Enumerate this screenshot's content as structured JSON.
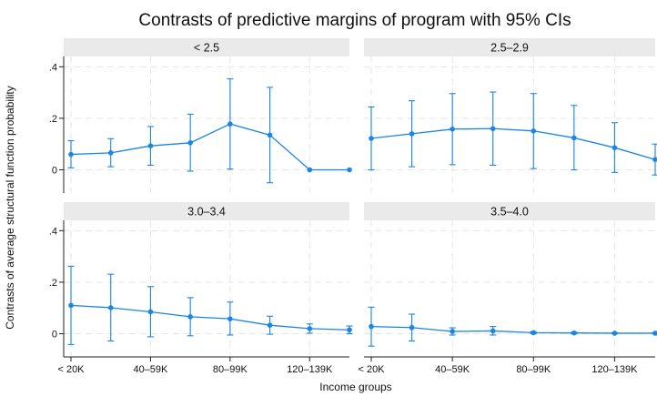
{
  "chart_data": {
    "type": "line",
    "title": "Contrasts of predictive margins of program with 95% CIs",
    "xlabel": "Income groups",
    "ylabel": "Contrasts of average structural function probability",
    "x_tick_labels": [
      "< 20K",
      "40–59K",
      "80–99K",
      "120–139K"
    ],
    "y_tick_labels": [
      "0",
      ".2",
      ".4"
    ],
    "y_tick_values": [
      0,
      0.2,
      0.4
    ],
    "ylim": [
      -0.09,
      0.44
    ],
    "x_count": 8,
    "x_tick_positions": [
      0,
      2,
      4,
      6
    ],
    "grid": true,
    "color": "#1a85e5",
    "panels": [
      {
        "name": "< 2.5",
        "values": [
          0.06,
          0.066,
          0.093,
          0.105,
          0.178,
          0.135,
          0.0,
          0.0
        ],
        "lower": [
          0.008,
          0.012,
          0.018,
          -0.005,
          0.003,
          -0.05,
          0.0,
          0.0
        ],
        "upper": [
          0.113,
          0.121,
          0.168,
          0.216,
          0.353,
          0.32,
          0.0,
          0.0
        ]
      },
      {
        "name": "2.5–2.9",
        "values": [
          0.122,
          0.14,
          0.158,
          0.16,
          0.151,
          0.124,
          0.086,
          0.04
        ],
        "lower": [
          0.0,
          0.012,
          0.02,
          0.018,
          0.005,
          0.0,
          -0.01,
          -0.02
        ],
        "upper": [
          0.244,
          0.268,
          0.296,
          0.302,
          0.296,
          0.25,
          0.183,
          0.1
        ]
      },
      {
        "name": "3.0–3.4",
        "values": [
          0.11,
          0.101,
          0.085,
          0.066,
          0.058,
          0.033,
          0.02,
          0.015
        ],
        "lower": [
          -0.042,
          -0.028,
          -0.012,
          -0.008,
          -0.005,
          -0.002,
          0.002,
          0.0
        ],
        "upper": [
          0.262,
          0.231,
          0.183,
          0.14,
          0.123,
          0.068,
          0.038,
          0.03
        ]
      },
      {
        "name": "3.5–4.0",
        "values": [
          0.028,
          0.024,
          0.009,
          0.011,
          0.004,
          0.003,
          0.002,
          0.002
        ],
        "lower": [
          -0.048,
          -0.028,
          -0.005,
          -0.005,
          0.0,
          0.0,
          0.0,
          0.0
        ],
        "upper": [
          0.103,
          0.076,
          0.023,
          0.028,
          0.008,
          0.006,
          0.004,
          0.004
        ]
      }
    ]
  }
}
